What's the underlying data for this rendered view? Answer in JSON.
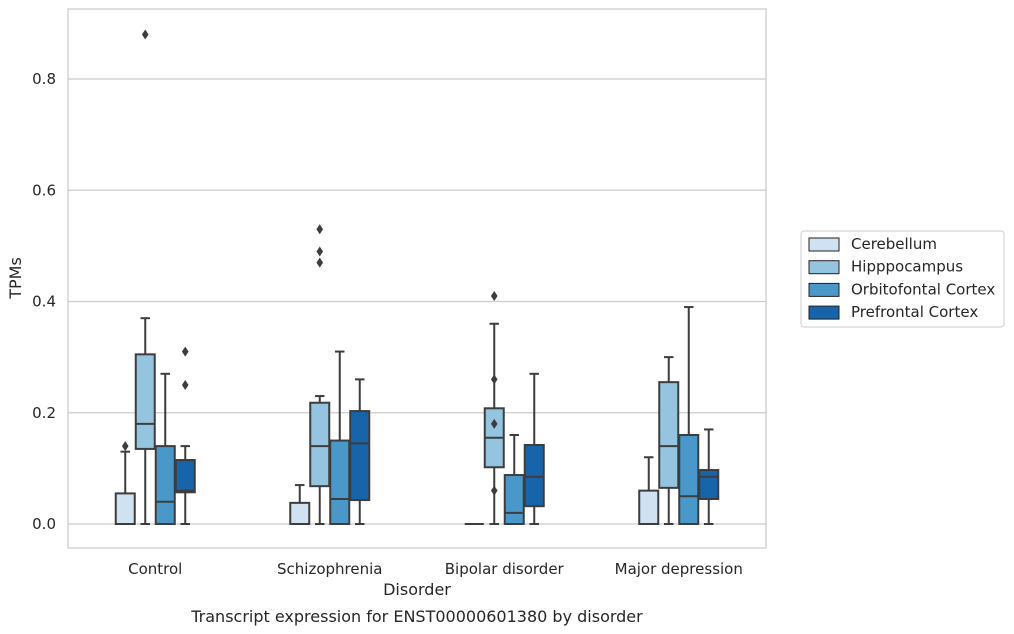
{
  "chart_data": {
    "type": "boxplot",
    "xlabel": "Disorder",
    "ylabel": "TPMs",
    "caption": "Transcript expression for ENST00000601380 by disorder",
    "ylim": [
      -0.042,
      0.93
    ],
    "yticks": [
      "0.0",
      "0.2",
      "0.4",
      "0.6",
      "0.8"
    ],
    "grid": "horizontal",
    "legend_position": "right",
    "categories": [
      "Control",
      "Schizophrenia",
      "Bipolar disorder",
      "Major depression"
    ],
    "series": [
      {
        "name": "Cerebellum",
        "color": "#d0e1f2",
        "boxes": [
          {
            "whislo": 0.0,
            "q1": 0.0,
            "med": 0.0,
            "q3": 0.055,
            "whishi": 0.13,
            "fliers": [
              0.14
            ]
          },
          {
            "whislo": 0.0,
            "q1": 0.0,
            "med": 0.0,
            "q3": 0.038,
            "whishi": 0.07,
            "fliers": []
          },
          {
            "whislo": 0.0,
            "q1": 0.0,
            "med": 0.0,
            "q3": 0.0,
            "whishi": 0.0,
            "fliers": []
          },
          {
            "whislo": 0.0,
            "q1": 0.0,
            "med": 0.0,
            "q3": 0.06,
            "whishi": 0.12,
            "fliers": []
          }
        ]
      },
      {
        "name": "Hipppocampus",
        "color": "#94c4df",
        "boxes": [
          {
            "whislo": 0.0,
            "q1": 0.135,
            "med": 0.18,
            "q3": 0.305,
            "whishi": 0.37,
            "fliers": [
              0.88
            ]
          },
          {
            "whislo": 0.0,
            "q1": 0.068,
            "med": 0.14,
            "q3": 0.218,
            "whishi": 0.23,
            "fliers": [
              0.47,
              0.49,
              0.53
            ]
          },
          {
            "whislo": 0.0,
            "q1": 0.102,
            "med": 0.155,
            "q3": 0.208,
            "whishi": 0.36,
            "fliers": [
              0.26,
              0.18,
              0.06,
              0.41
            ]
          },
          {
            "whislo": 0.0,
            "q1": 0.065,
            "med": 0.14,
            "q3": 0.255,
            "whishi": 0.3,
            "fliers": []
          }
        ]
      },
      {
        "name": "Orbitofontal Cortex",
        "color": "#4a98c9",
        "boxes": [
          {
            "whislo": 0.0,
            "q1": 0.0,
            "med": 0.04,
            "q3": 0.14,
            "whishi": 0.27,
            "fliers": []
          },
          {
            "whislo": 0.0,
            "q1": 0.0,
            "med": 0.045,
            "q3": 0.15,
            "whishi": 0.31,
            "fliers": []
          },
          {
            "whislo": 0.0,
            "q1": 0.0,
            "med": 0.02,
            "q3": 0.088,
            "whishi": 0.16,
            "fliers": []
          },
          {
            "whislo": 0.0,
            "q1": 0.0,
            "med": 0.05,
            "q3": 0.16,
            "whishi": 0.39,
            "fliers": []
          }
        ]
      },
      {
        "name": "Prefrontal Cortex",
        "color": "#1764ab",
        "boxes": [
          {
            "whislo": 0.0,
            "q1": 0.057,
            "med": 0.06,
            "q3": 0.115,
            "whishi": 0.14,
            "fliers": [
              0.25,
              0.31
            ]
          },
          {
            "whislo": 0.0,
            "q1": 0.043,
            "med": 0.145,
            "q3": 0.203,
            "whishi": 0.26,
            "fliers": []
          },
          {
            "whislo": 0.0,
            "q1": 0.032,
            "med": 0.085,
            "q3": 0.142,
            "whishi": 0.27,
            "fliers": []
          },
          {
            "whislo": 0.0,
            "q1": 0.045,
            "med": 0.085,
            "q3": 0.097,
            "whishi": 0.17,
            "fliers": []
          }
        ]
      }
    ]
  }
}
